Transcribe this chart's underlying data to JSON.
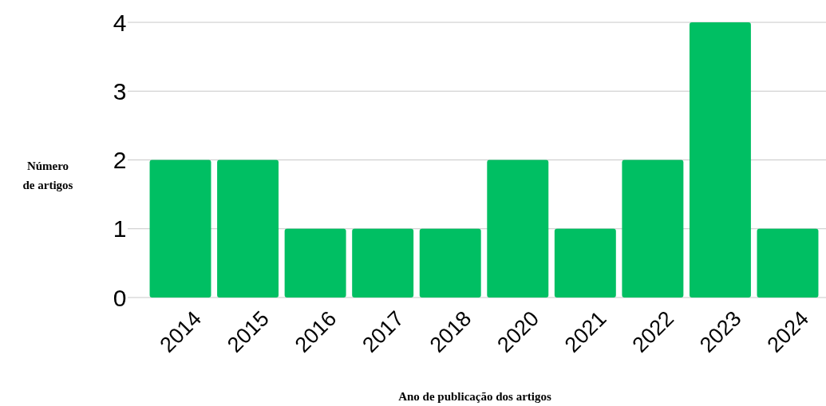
{
  "chart_data": {
    "type": "bar",
    "xlabel": "Ano de publicação dos artigos",
    "ylabel": "Número de artigos",
    "categories": [
      "2014",
      "2015",
      "2016",
      "2017",
      "2018",
      "2020",
      "2021",
      "2022",
      "2023",
      "2024"
    ],
    "values": [
      2,
      2,
      1,
      1,
      1,
      2,
      1,
      2,
      4,
      1
    ],
    "color": "#00bf63",
    "ylim": [
      0,
      4
    ],
    "yticks": [
      0,
      1,
      2,
      3,
      4
    ],
    "grid": "y"
  }
}
